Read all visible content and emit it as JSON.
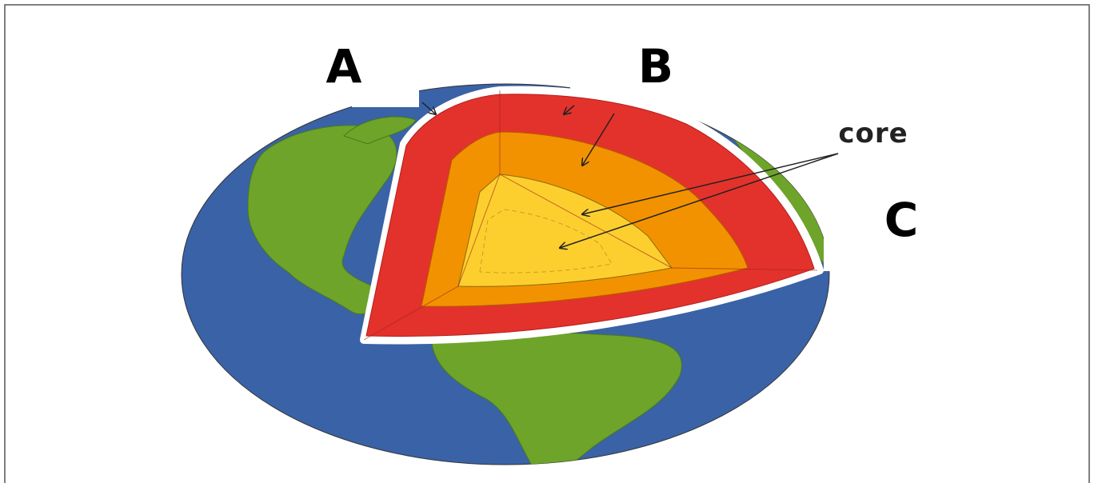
{
  "labels": {
    "a": "A",
    "b": "B",
    "c": "C",
    "core": "core"
  }
}
